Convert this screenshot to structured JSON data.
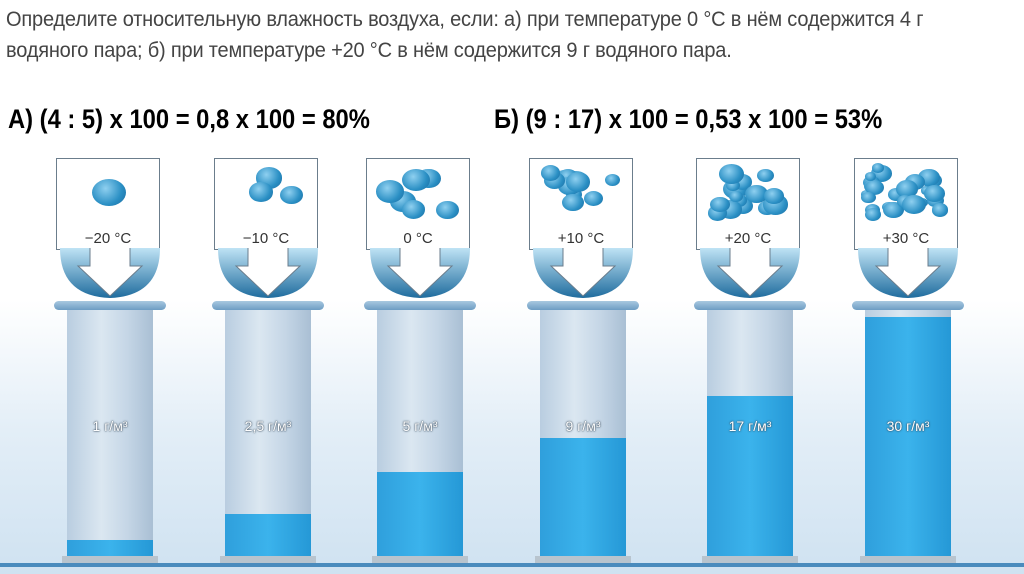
{
  "question": "Определите относительную влажность воздуха, если: а) при температуре 0 °С в нём содержится 4 г водяного пара; б) при температуре +20 °С в нём содержится 9 г водяного пара.",
  "answer_a": "А) (4 : 5) х 100 = 0,8 х 100 = 80%",
  "answer_b": "Б) (9 : 17) х 100 = 0,53 х 100 = 53%",
  "columns": [
    {
      "temp": "−20 °C",
      "label": "1 г/м³",
      "bubbles": 1,
      "fill_fraction": 0.065
    },
    {
      "temp": "−10 °C",
      "label": "2,5 г/м³",
      "bubbles": 3,
      "fill_fraction": 0.17
    },
    {
      "temp": "0 °C",
      "label": "5 г/м³",
      "bubbles": 6,
      "fill_fraction": 0.34
    },
    {
      "temp": "+10 °C",
      "label": "9 г/м³",
      "bubbles": 11,
      "fill_fraction": 0.48
    },
    {
      "temp": "+20 °C",
      "label": "17 г/м³",
      "bubbles": 15,
      "fill_fraction": 0.65
    },
    {
      "temp": "+30 °C",
      "label": "30 г/м³",
      "bubbles": 26,
      "fill_fraction": 0.97
    }
  ],
  "colors": {
    "water": "#3bb3ec",
    "tube": "#c5d6e6",
    "arrow": "#2a7fb5"
  }
}
